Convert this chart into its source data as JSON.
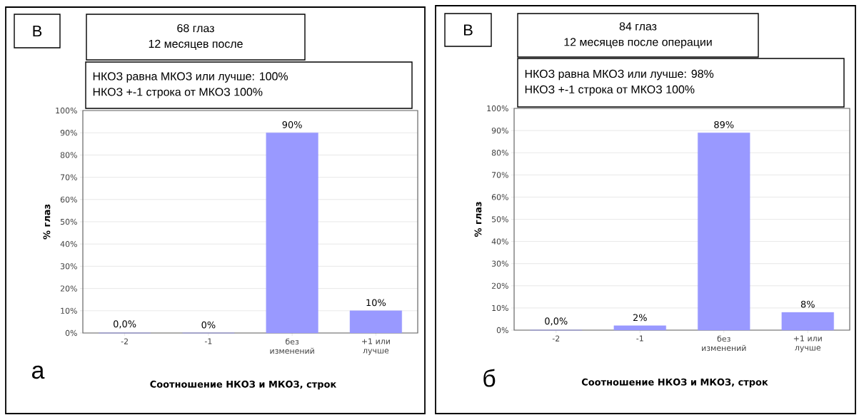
{
  "chart_data": [
    {
      "type": "bar",
      "title": "68 глаз",
      "subtitle": "12 месяцев после",
      "annotations": [
        "В",
        "НКОЗ равна МКОЗ или лучше: 100%",
        "НКОЗ +-1 строка от МКОЗ 100%",
        "а"
      ],
      "ylabel": "% глаз",
      "xlabel": "Соотношение НКОЗ и МКОЗ, строк",
      "categories": [
        "-2",
        "-1",
        "без изменений",
        "+1 или лучше"
      ],
      "values": [
        0,
        0,
        90,
        10
      ],
      "value_labels": [
        "0,0%",
        "0%",
        "90%",
        "10%"
      ],
      "color": "#9999ff",
      "ylim": [
        0,
        100
      ],
      "yticks": [
        {
          "value": 0,
          "label": "0%"
        },
        {
          "value": 10,
          "label": "10%"
        },
        {
          "value": 20,
          "label": "20%"
        },
        {
          "value": 30,
          "label": "30%"
        },
        {
          "value": 40,
          "label": "40%"
        },
        {
          "value": 50,
          "label": "50%"
        },
        {
          "value": 60,
          "label": "60%"
        },
        {
          "value": 70,
          "label": "70%"
        },
        {
          "value": 80,
          "label": "80%"
        },
        {
          "value": 90,
          "label": "90%"
        },
        {
          "value": 100,
          "label": "100%"
        }
      ],
      "grid": "y"
    },
    {
      "type": "bar",
      "title": "84 глаз",
      "subtitle": "12 месяцев после операции",
      "annotations": [
        "В",
        "НКОЗ равна МКОЗ или лучше: 98%",
        "НКОЗ +-1 строка от МКОЗ 100%",
        "б"
      ],
      "ylabel": "% глаз",
      "xlabel": "Соотношение НКОЗ и МКОЗ, строк",
      "categories": [
        "-2",
        "-1",
        "без изменений",
        "+1 или лучше"
      ],
      "values": [
        0,
        2,
        89,
        8
      ],
      "value_labels": [
        "0,0%",
        "2%",
        "89%",
        "8%"
      ],
      "color": "#9999ff",
      "ylim": [
        0,
        100
      ],
      "yticks": [
        {
          "value": 0,
          "label": "0%"
        },
        {
          "value": 10,
          "label": "10%"
        },
        {
          "value": 20,
          "label": "20%"
        },
        {
          "value": 30,
          "label": "30%"
        },
        {
          "value": 40,
          "label": "40%"
        },
        {
          "value": 50,
          "label": "50%"
        },
        {
          "value": 60,
          "label": "60%"
        },
        {
          "value": 70,
          "label": "70%"
        },
        {
          "value": 80,
          "label": "80%"
        },
        {
          "value": 90,
          "label": "90%"
        },
        {
          "value": 100,
          "label": "100%"
        }
      ],
      "grid": "y"
    }
  ]
}
